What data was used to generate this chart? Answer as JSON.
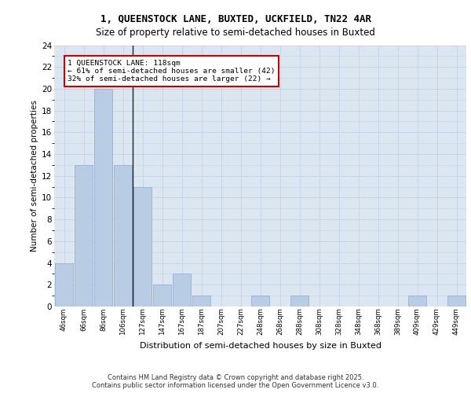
{
  "title1": "1, QUEENSTOCK LANE, BUXTED, UCKFIELD, TN22 4AR",
  "title2": "Size of property relative to semi-detached houses in Buxted",
  "xlabel": "Distribution of semi-detached houses by size in Buxted",
  "ylabel": "Number of semi-detached properties",
  "categories": [
    "46sqm",
    "66sqm",
    "86sqm",
    "106sqm",
    "127sqm",
    "147sqm",
    "167sqm",
    "187sqm",
    "207sqm",
    "227sqm",
    "248sqm",
    "268sqm",
    "288sqm",
    "308sqm",
    "328sqm",
    "348sqm",
    "368sqm",
    "389sqm",
    "409sqm",
    "429sqm",
    "449sqm"
  ],
  "values": [
    4,
    13,
    20,
    13,
    11,
    2,
    3,
    1,
    0,
    0,
    1,
    0,
    1,
    0,
    0,
    0,
    0,
    0,
    1,
    0,
    1
  ],
  "bar_color": "#b8cce4",
  "bar_edge_color": "#8faacc",
  "property_line_index": 3,
  "annotation_title": "1 QUEENSTOCK LANE: 118sqm",
  "annotation_line1": "← 61% of semi-detached houses are smaller (42)",
  "annotation_line2": "32% of semi-detached houses are larger (22) →",
  "annotation_box_color": "#ffffff",
  "annotation_box_edge": "#cc0000",
  "ylim": [
    0,
    24
  ],
  "yticks": [
    0,
    2,
    4,
    6,
    8,
    10,
    12,
    14,
    16,
    18,
    20,
    22,
    24
  ],
  "grid_color": "#c8d4e8",
  "bg_color": "#dce6f1",
  "footer1": "Contains HM Land Registry data © Crown copyright and database right 2025.",
  "footer2": "Contains public sector information licensed under the Open Government Licence v3.0."
}
